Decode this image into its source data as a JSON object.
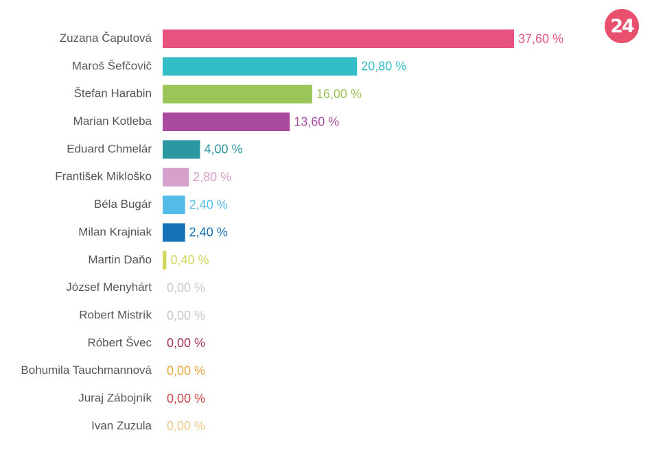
{
  "logo": {
    "text": "24",
    "color": "#e8506e"
  },
  "chart_data": {
    "type": "bar",
    "orientation": "horizontal",
    "title": "",
    "xlabel": "",
    "ylabel": "",
    "xlim": [
      0,
      37.6
    ],
    "grid": false,
    "legend": "none",
    "categories": [
      "Zuzana Čaputová",
      "Maroš Šefčovič",
      "Štefan Harabin",
      "Marian Kotleba",
      "Eduard Chmelár",
      "František Mikloško",
      "Béla Bugár",
      "Milan Krajniak",
      "Martin Daňo",
      "József Menyhárt",
      "Robert Mistrík",
      "Róbert Švec",
      "Bohumila Tauchmannová",
      "Juraj Zábojník",
      "Ivan Zuzula"
    ],
    "values": [
      37.6,
      20.8,
      16.0,
      13.6,
      4.0,
      2.8,
      2.4,
      2.4,
      0.4,
      0.0,
      0.0,
      0.0,
      0.0,
      0.0,
      0.0
    ],
    "value_labels": [
      "37,60 %",
      "20,80 %",
      "16,00 %",
      "13,60 %",
      "4,00 %",
      "2,80 %",
      "2,40 %",
      "2,40 %",
      "0,40 %",
      "0,00 %",
      "0,00 %",
      "0,00 %",
      "0,00 %",
      "0,00 %",
      "0,00 %"
    ],
    "colors": [
      "#e8527f",
      "#33bdc7",
      "#9bc558",
      "#aa4b9f",
      "#2b97a1",
      "#d6a0cc",
      "#54bbe9",
      "#1572b6",
      "#d0d75c",
      "#c8c8c8",
      "#c8c8c8",
      "#a8325a",
      "#e4a43a",
      "#cc4444",
      "#f2c88a"
    ]
  }
}
